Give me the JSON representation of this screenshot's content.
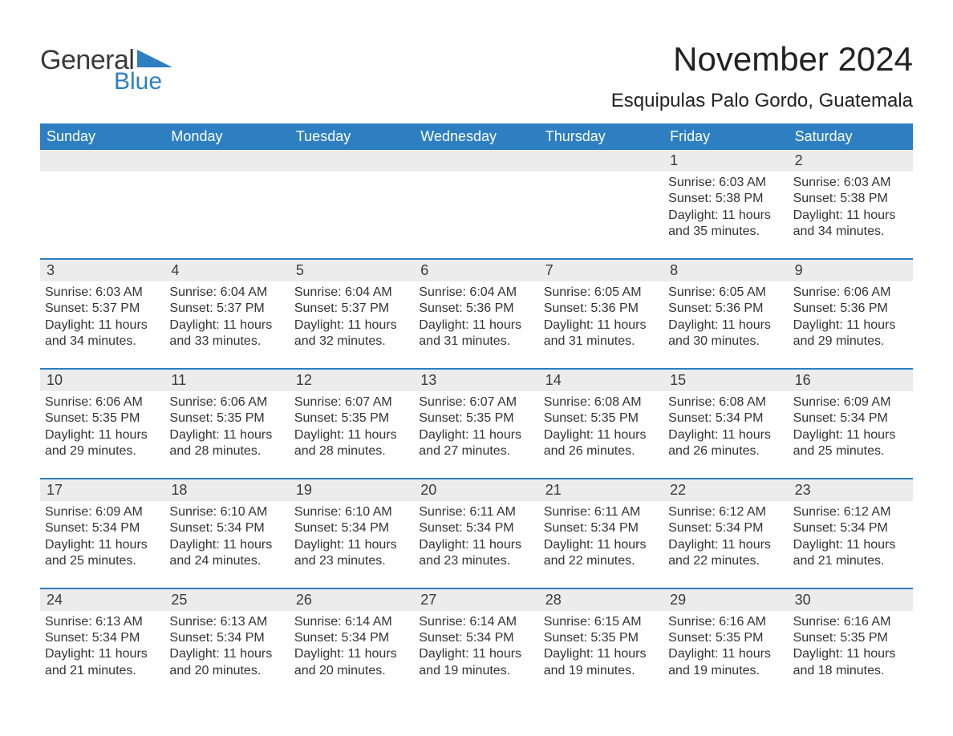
{
  "logo": {
    "text_general": "General",
    "text_blue": "Blue",
    "triangle_color": "#2d7fc1"
  },
  "header": {
    "month_title": "November 2024",
    "location": "Esquipulas Palo Gordo, Guatemala"
  },
  "colors": {
    "header_bg": "#2d7fc1",
    "header_fg": "#ffffff",
    "daynum_bg": "#ececec",
    "week_border": "#2d7fc1",
    "text": "#333333",
    "page_bg": "#ffffff"
  },
  "typography": {
    "title_fontsize": 42,
    "location_fontsize": 24,
    "dow_fontsize": 18,
    "daynum_fontsize": 18,
    "body_fontsize": 16
  },
  "labels": {
    "sunrise_prefix": "Sunrise: ",
    "sunset_prefix": "Sunset: ",
    "daylight_prefix": "Daylight: "
  },
  "days_of_week": [
    "Sunday",
    "Monday",
    "Tuesday",
    "Wednesday",
    "Thursday",
    "Friday",
    "Saturday"
  ],
  "weeks": [
    [
      {
        "empty": true
      },
      {
        "empty": true
      },
      {
        "empty": true
      },
      {
        "empty": true
      },
      {
        "empty": true
      },
      {
        "n": "1",
        "sunrise": "6:03 AM",
        "sunset": "5:38 PM",
        "daylight": "11 hours and 35 minutes."
      },
      {
        "n": "2",
        "sunrise": "6:03 AM",
        "sunset": "5:38 PM",
        "daylight": "11 hours and 34 minutes."
      }
    ],
    [
      {
        "n": "3",
        "sunrise": "6:03 AM",
        "sunset": "5:37 PM",
        "daylight": "11 hours and 34 minutes."
      },
      {
        "n": "4",
        "sunrise": "6:04 AM",
        "sunset": "5:37 PM",
        "daylight": "11 hours and 33 minutes."
      },
      {
        "n": "5",
        "sunrise": "6:04 AM",
        "sunset": "5:37 PM",
        "daylight": "11 hours and 32 minutes."
      },
      {
        "n": "6",
        "sunrise": "6:04 AM",
        "sunset": "5:36 PM",
        "daylight": "11 hours and 31 minutes."
      },
      {
        "n": "7",
        "sunrise": "6:05 AM",
        "sunset": "5:36 PM",
        "daylight": "11 hours and 31 minutes."
      },
      {
        "n": "8",
        "sunrise": "6:05 AM",
        "sunset": "5:36 PM",
        "daylight": "11 hours and 30 minutes."
      },
      {
        "n": "9",
        "sunrise": "6:06 AM",
        "sunset": "5:36 PM",
        "daylight": "11 hours and 29 minutes."
      }
    ],
    [
      {
        "n": "10",
        "sunrise": "6:06 AM",
        "sunset": "5:35 PM",
        "daylight": "11 hours and 29 minutes."
      },
      {
        "n": "11",
        "sunrise": "6:06 AM",
        "sunset": "5:35 PM",
        "daylight": "11 hours and 28 minutes."
      },
      {
        "n": "12",
        "sunrise": "6:07 AM",
        "sunset": "5:35 PM",
        "daylight": "11 hours and 28 minutes."
      },
      {
        "n": "13",
        "sunrise": "6:07 AM",
        "sunset": "5:35 PM",
        "daylight": "11 hours and 27 minutes."
      },
      {
        "n": "14",
        "sunrise": "6:08 AM",
        "sunset": "5:35 PM",
        "daylight": "11 hours and 26 minutes."
      },
      {
        "n": "15",
        "sunrise": "6:08 AM",
        "sunset": "5:34 PM",
        "daylight": "11 hours and 26 minutes."
      },
      {
        "n": "16",
        "sunrise": "6:09 AM",
        "sunset": "5:34 PM",
        "daylight": "11 hours and 25 minutes."
      }
    ],
    [
      {
        "n": "17",
        "sunrise": "6:09 AM",
        "sunset": "5:34 PM",
        "daylight": "11 hours and 25 minutes."
      },
      {
        "n": "18",
        "sunrise": "6:10 AM",
        "sunset": "5:34 PM",
        "daylight": "11 hours and 24 minutes."
      },
      {
        "n": "19",
        "sunrise": "6:10 AM",
        "sunset": "5:34 PM",
        "daylight": "11 hours and 23 minutes."
      },
      {
        "n": "20",
        "sunrise": "6:11 AM",
        "sunset": "5:34 PM",
        "daylight": "11 hours and 23 minutes."
      },
      {
        "n": "21",
        "sunrise": "6:11 AM",
        "sunset": "5:34 PM",
        "daylight": "11 hours and 22 minutes."
      },
      {
        "n": "22",
        "sunrise": "6:12 AM",
        "sunset": "5:34 PM",
        "daylight": "11 hours and 22 minutes."
      },
      {
        "n": "23",
        "sunrise": "6:12 AM",
        "sunset": "5:34 PM",
        "daylight": "11 hours and 21 minutes."
      }
    ],
    [
      {
        "n": "24",
        "sunrise": "6:13 AM",
        "sunset": "5:34 PM",
        "daylight": "11 hours and 21 minutes."
      },
      {
        "n": "25",
        "sunrise": "6:13 AM",
        "sunset": "5:34 PM",
        "daylight": "11 hours and 20 minutes."
      },
      {
        "n": "26",
        "sunrise": "6:14 AM",
        "sunset": "5:34 PM",
        "daylight": "11 hours and 20 minutes."
      },
      {
        "n": "27",
        "sunrise": "6:14 AM",
        "sunset": "5:34 PM",
        "daylight": "11 hours and 19 minutes."
      },
      {
        "n": "28",
        "sunrise": "6:15 AM",
        "sunset": "5:35 PM",
        "daylight": "11 hours and 19 minutes."
      },
      {
        "n": "29",
        "sunrise": "6:16 AM",
        "sunset": "5:35 PM",
        "daylight": "11 hours and 19 minutes."
      },
      {
        "n": "30",
        "sunrise": "6:16 AM",
        "sunset": "5:35 PM",
        "daylight": "11 hours and 18 minutes."
      }
    ]
  ]
}
